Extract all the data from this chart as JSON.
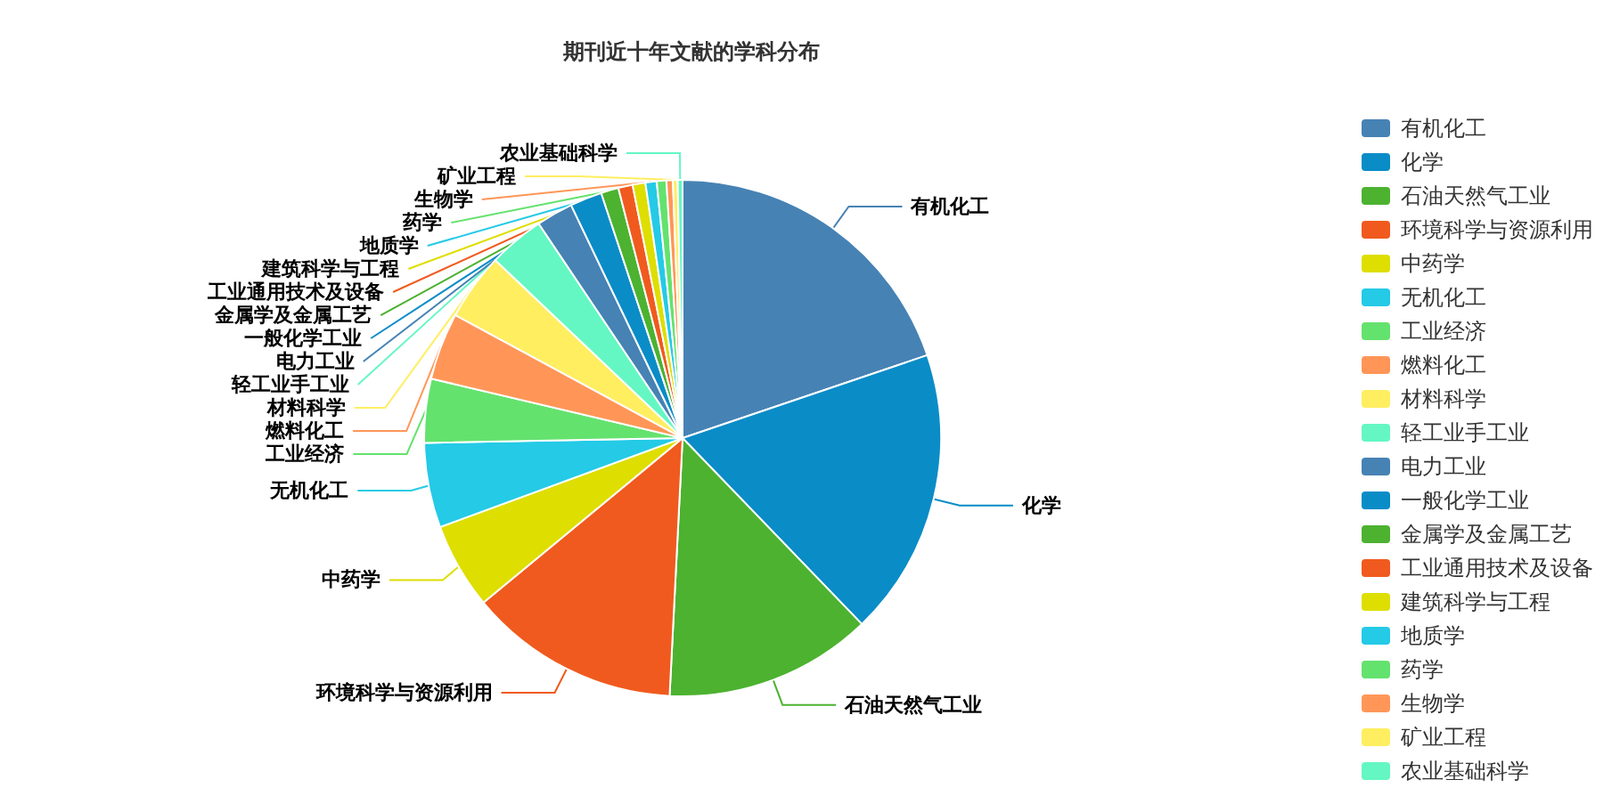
{
  "chart_data": {
    "type": "pie",
    "title": "期刊近十年文献的学科分布",
    "legend": "right",
    "categories": [
      "有机化工",
      "化学",
      "石油天然气工业",
      "环境科学与资源利用",
      "中药学",
      "无机化工",
      "工业经济",
      "燃料化工",
      "材料科学",
      "轻工业手工业",
      "电力工业",
      "一般化学工业",
      "金属学及金属工艺",
      "工业通用技术及设备",
      "建筑科学与工程",
      "地质学",
      "药学",
      "生物学",
      "矿业工程",
      "农业基础科学"
    ],
    "values": [
      19.8,
      18,
      13,
      13.2,
      5.4,
      5.3,
      4,
      4.2,
      4.2,
      3.5,
      2.3,
      2,
      1.1,
      0.9,
      0.8,
      0.7,
      0.6,
      0.4,
      0.3,
      0.3
    ],
    "colors": [
      "#4682b4",
      "#0a8cc7",
      "#4cb230",
      "#f05a1e",
      "#dede00",
      "#24cae6",
      "#64e26e",
      "#ff9658",
      "#ffee60",
      "#64f7c3",
      "#4682b4",
      "#0a8cc7",
      "#4cb230",
      "#f05a1e",
      "#dede00",
      "#24cae6",
      "#64e26e",
      "#ff9658",
      "#ffee60",
      "#64f7c3"
    ]
  }
}
